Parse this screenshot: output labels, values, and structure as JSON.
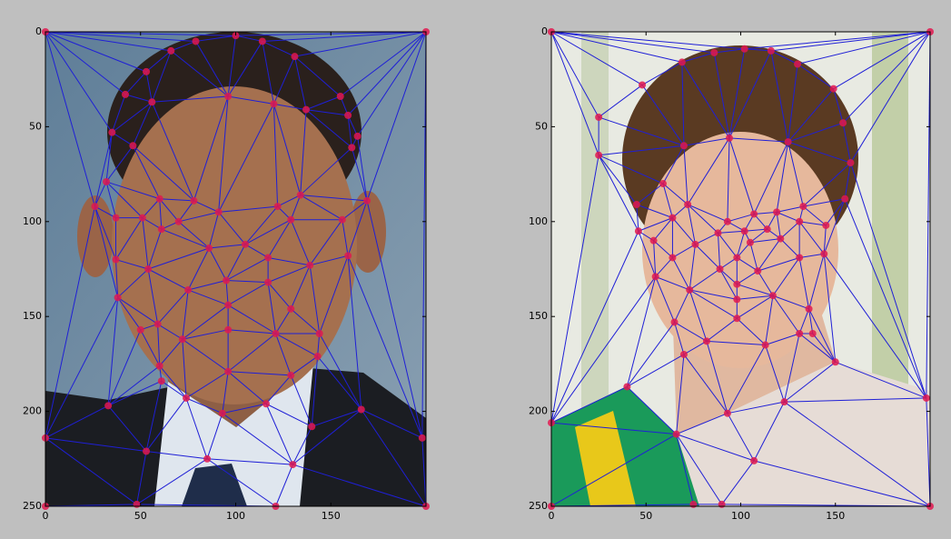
{
  "chart_data": [
    {
      "type": "scatter",
      "point_color": "#e0174f",
      "edge_color": "#1f1fd6",
      "xlim": [
        0,
        200
      ],
      "ylim": [
        250,
        0
      ],
      "xticks": [
        0,
        50,
        100,
        150
      ],
      "yticks": [
        0,
        50,
        100,
        150,
        200,
        250
      ],
      "x": [
        0,
        200,
        0,
        200,
        0,
        198,
        48,
        121,
        100,
        66,
        79,
        114,
        131,
        53,
        42,
        155,
        56,
        96,
        120,
        137,
        159,
        35,
        46,
        164,
        161,
        32,
        169,
        26,
        37,
        60,
        78,
        91,
        122,
        134,
        156,
        51,
        70,
        129,
        61,
        86,
        105,
        37,
        54,
        117,
        139,
        159,
        75,
        95,
        117,
        38,
        96,
        129,
        59,
        50,
        96,
        72,
        121,
        144,
        60,
        143,
        96,
        61,
        74,
        129,
        116,
        93,
        33,
        166,
        140,
        53,
        85,
        130
      ],
      "y": [
        0,
        0,
        250,
        250,
        214,
        214,
        249,
        250,
        2,
        10,
        5,
        5,
        13,
        21,
        33,
        34,
        37,
        34,
        38,
        41,
        44,
        53,
        60,
        55,
        61,
        79,
        89,
        92,
        98,
        88,
        89,
        95,
        92,
        86,
        99,
        98,
        100,
        99,
        104,
        114,
        112,
        120,
        125,
        119,
        123,
        118,
        136,
        131,
        132,
        140,
        144,
        146,
        154,
        157,
        157,
        162,
        159,
        159,
        176,
        171,
        179,
        184,
        193,
        181,
        196,
        201,
        197,
        199,
        208,
        221,
        225,
        228
      ]
    },
    {
      "type": "scatter",
      "point_color": "#e0174f",
      "edge_color": "#1f1fd6",
      "xlim": [
        0,
        200
      ],
      "ylim": [
        250,
        0
      ],
      "xticks": [
        0,
        50,
        100,
        150
      ],
      "yticks": [
        0,
        50,
        100,
        150,
        200,
        250
      ],
      "x": [
        0,
        200,
        0,
        200,
        0,
        69,
        86,
        102,
        116,
        130,
        48,
        149,
        25,
        154,
        25,
        70,
        94,
        125,
        158,
        59,
        45,
        155,
        72,
        93,
        107,
        119,
        133,
        64,
        46,
        145,
        88,
        102,
        114,
        131,
        54,
        76,
        105,
        121,
        98,
        64,
        89,
        109,
        131,
        144,
        55,
        73,
        98,
        117,
        65,
        98,
        98,
        136,
        82,
        113,
        131,
        70,
        138,
        150,
        40,
        123,
        93,
        198,
        66,
        107,
        75,
        90
      ],
      "y": [
        0,
        0,
        250,
        250,
        206,
        16,
        11,
        9,
        10,
        17,
        28,
        30,
        45,
        48,
        65,
        60,
        56,
        58,
        69,
        80,
        91,
        88,
        91,
        100,
        96,
        95,
        92,
        98,
        105,
        102,
        106,
        105,
        104,
        100,
        110,
        112,
        111,
        109,
        119,
        119,
        125,
        126,
        119,
        117,
        129,
        136,
        133,
        139,
        153,
        141,
        151,
        146,
        163,
        165,
        159,
        170,
        159,
        174,
        187,
        195,
        201,
        193,
        212,
        226,
        249,
        249
      ]
    }
  ]
}
